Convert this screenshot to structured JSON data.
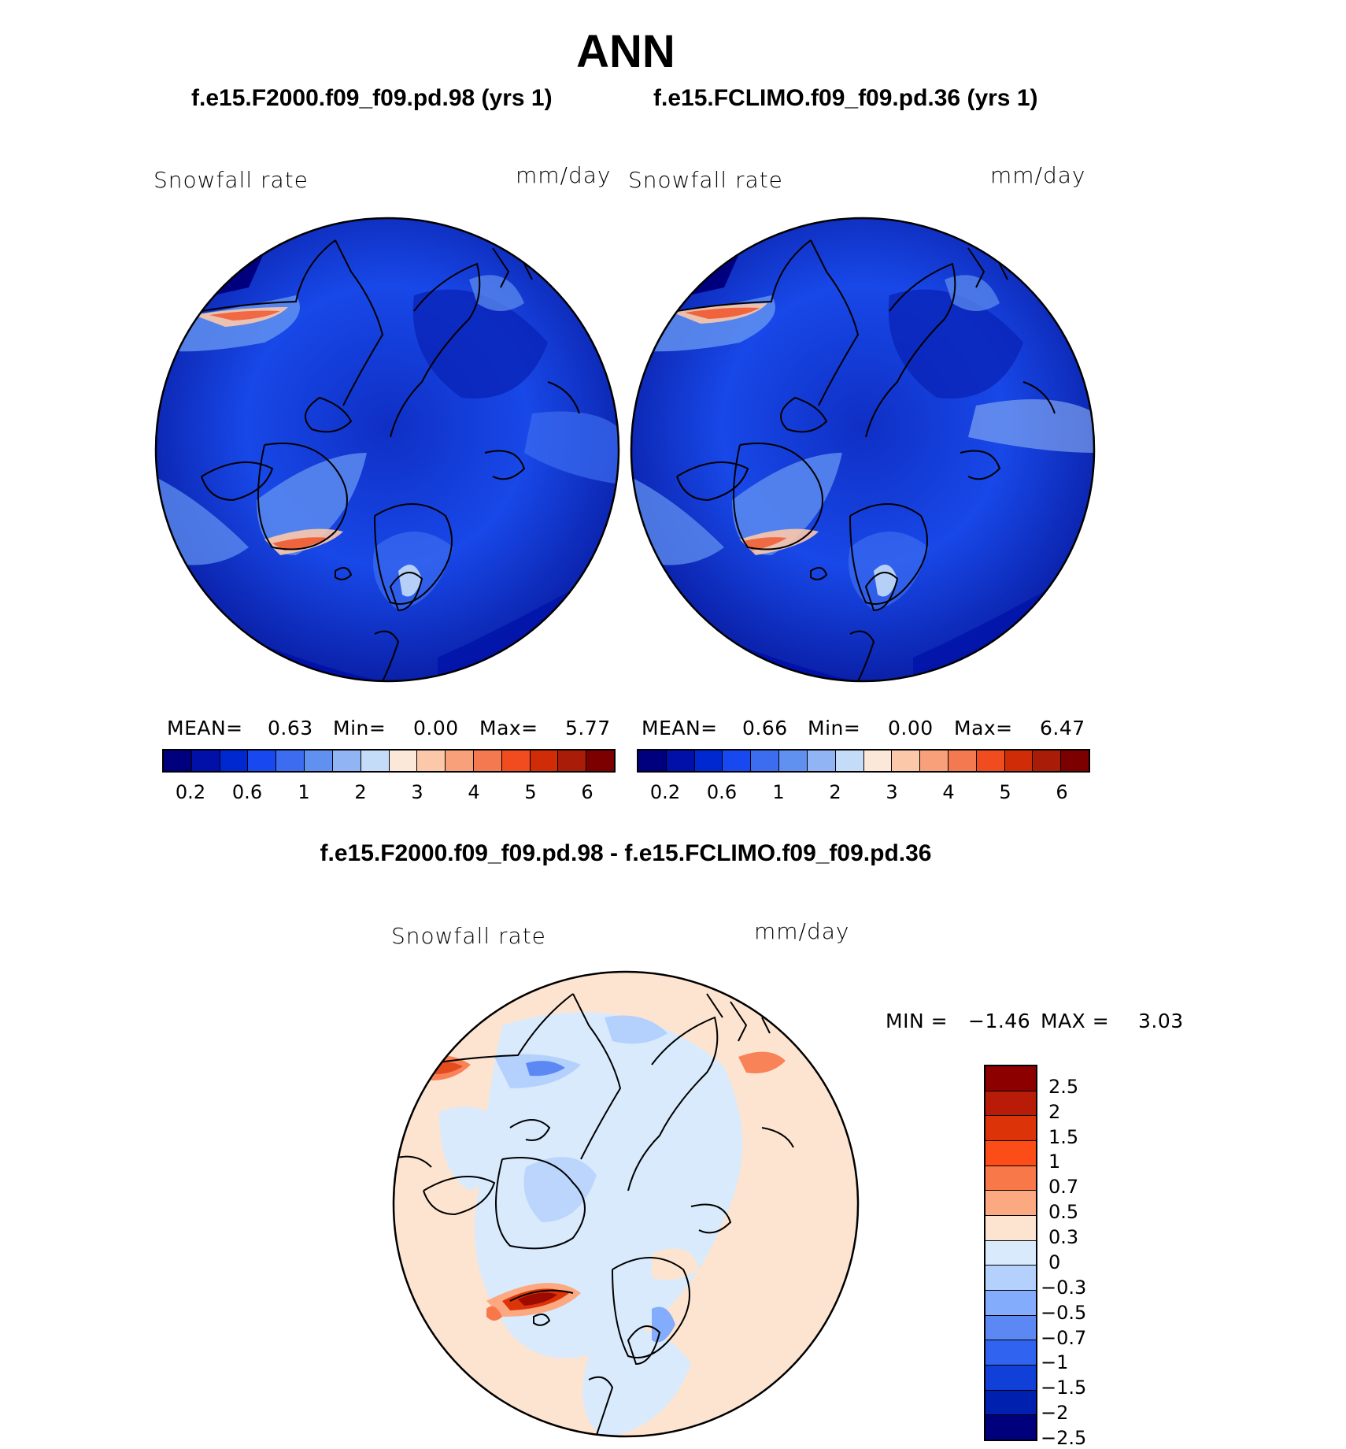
{
  "title": "ANN",
  "panels": [
    {
      "case_title": "f.e15.F2000.f09_f09.pd.98 (yrs 1)",
      "var_label": "Snowfall rate",
      "units": "mm/day",
      "mean_label": "MEAN=",
      "mean": "0.63",
      "min_label": "Min=",
      "min": "0.00",
      "max_label": "Max=",
      "max": "5.77"
    },
    {
      "case_title": "f.e15.FCLIMO.f09_f09.pd.36 (yrs 1)",
      "var_label": "Snowfall rate",
      "units": "mm/day",
      "mean_label": "MEAN=",
      "mean": "0.66",
      "min_label": "Min=",
      "min": "0.00",
      "max_label": "Max=",
      "max": "6.47"
    }
  ],
  "colorbar": {
    "colors": [
      "#00007f",
      "#0010a8",
      "#0028d0",
      "#1848f0",
      "#3c6cf0",
      "#6090f0",
      "#90b4f4",
      "#c4dcf8",
      "#fbe8d8",
      "#fcc8aa",
      "#f8a07a",
      "#f47850",
      "#f04c20",
      "#d02c08",
      "#a81c08",
      "#7c0000"
    ],
    "tick_labels": [
      "0.2",
      "0.6",
      "1",
      "2",
      "3",
      "4",
      "5",
      "6"
    ]
  },
  "diff": {
    "title": "f.e15.F2000.f09_f09.pd.98 - f.e15.FCLIMO.f09_f09.pd.36",
    "var_label": "Snowfall rate",
    "units": "mm/day",
    "min_label": "MIN =",
    "min": "−1.46",
    "max_label": "MAX =",
    "max": "3.03",
    "colorbar": {
      "colors_top_to_bottom": [
        "#8c0000",
        "#b81c08",
        "#dc3408",
        "#fc4c18",
        "#f8784a",
        "#fca880",
        "#fde4d0",
        "#d8eafc",
        "#b4d0fc",
        "#84acfc",
        "#5c88f4",
        "#3064f0",
        "#1040d8",
        "#0020b0",
        "#00007c"
      ],
      "tick_labels": [
        "2.5",
        "2",
        "1.5",
        "1",
        "0.7",
        "0.5",
        "0.3",
        "0",
        "−0.3",
        "−0.5",
        "−0.7",
        "−1",
        "−1.5",
        "−2",
        "−2.5"
      ]
    }
  }
}
